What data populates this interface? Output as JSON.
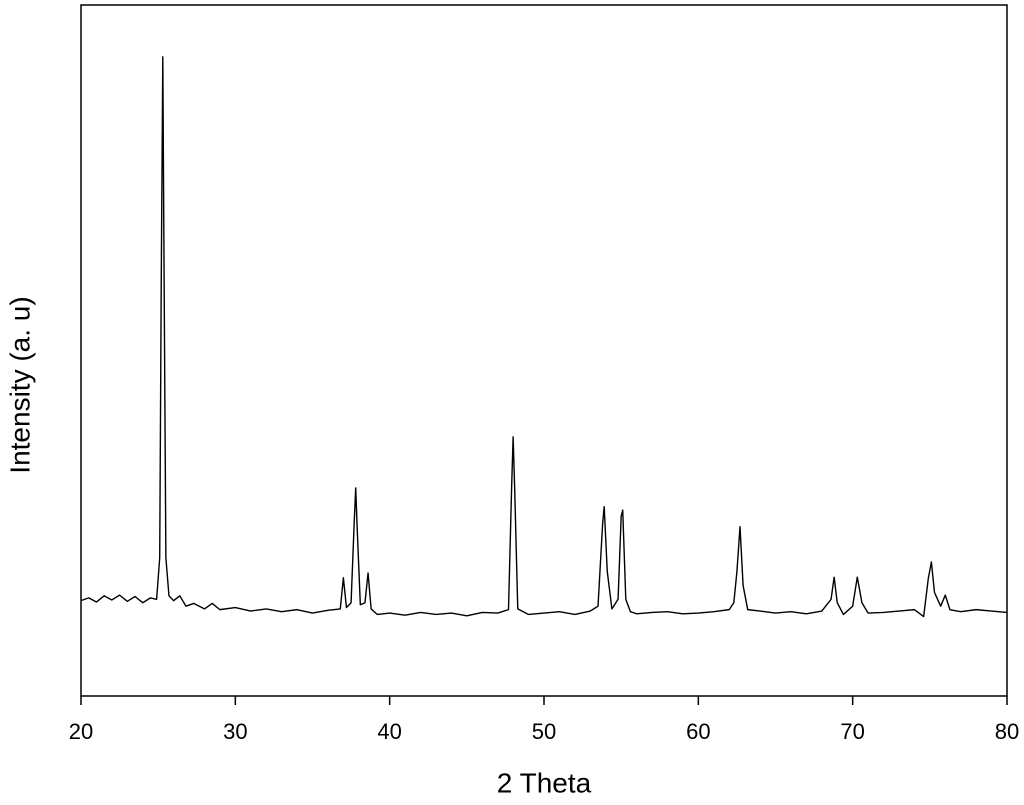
{
  "chart_data": {
    "type": "line",
    "x_label": "2 Theta",
    "y_label": "Intensity (a. u)",
    "xlim": [
      20,
      80
    ],
    "xticks": [
      20,
      30,
      40,
      50,
      60,
      70,
      80
    ],
    "ylim": [
      0,
      100
    ],
    "color": "#000000",
    "x": [
      20,
      20.5,
      21,
      21.5,
      22,
      22.5,
      23,
      23.5,
      24,
      24.5,
      24.9,
      25.1,
      25.2,
      25.3,
      25.4,
      25.5,
      25.7,
      26,
      26.4,
      26.8,
      27.3,
      28,
      28.5,
      29,
      30,
      31,
      32,
      33,
      34,
      35,
      36,
      36.8,
      37.0,
      37.2,
      37.5,
      37.7,
      37.8,
      37.9,
      38.1,
      38.4,
      38.6,
      38.8,
      39.2,
      40,
      41,
      42,
      43,
      44,
      45,
      46,
      47,
      47.7,
      47.9,
      48.0,
      48.1,
      48.3,
      49,
      50,
      51,
      52,
      53,
      53.5,
      53.8,
      53.9,
      54.1,
      54.4,
      54.8,
      55.0,
      55.1,
      55.3,
      55.6,
      56,
      57,
      58,
      59,
      60,
      61,
      62,
      62.3,
      62.5,
      62.7,
      62.9,
      63.2,
      64,
      65,
      66,
      67,
      68,
      68.6,
      68.8,
      69.0,
      69.4,
      70.0,
      70.3,
      70.6,
      71,
      72,
      73,
      74,
      74.6,
      74.9,
      75.1,
      75.3,
      75.7,
      76.0,
      76.3,
      77,
      78,
      79,
      80
    ],
    "values": [
      13.8,
      14.2,
      13.6,
      14.5,
      13.9,
      14.6,
      13.7,
      14.4,
      13.5,
      14.2,
      14.0,
      20,
      60,
      92.5,
      55,
      20,
      14.5,
      13.8,
      14.5,
      13.0,
      13.4,
      12.6,
      13.4,
      12.5,
      12.8,
      12.3,
      12.6,
      12.2,
      12.5,
      12.0,
      12.4,
      12.6,
      17.1,
      12.8,
      13.5,
      25,
      30.1,
      24,
      13.2,
      13.5,
      17.8,
      12.6,
      11.8,
      12.0,
      11.7,
      12.1,
      11.8,
      12.0,
      11.6,
      12.1,
      12.0,
      12.5,
      30,
      37.5,
      30,
      12.6,
      11.8,
      12.0,
      12.2,
      11.8,
      12.3,
      13,
      25,
      27.4,
      18,
      12.6,
      14,
      26,
      26.9,
      14,
      12.2,
      11.9,
      12.1,
      12.2,
      11.9,
      12.0,
      12.2,
      12.5,
      13.5,
      18,
      24.5,
      16,
      12.5,
      12.3,
      12.0,
      12.2,
      11.9,
      12.3,
      14,
      17.2,
      13.5,
      11.8,
      13,
      17.2,
      13.5,
      12.0,
      12.1,
      12.3,
      12.5,
      11.5,
      17,
      19.4,
      15,
      13,
      14.6,
      12.5,
      12.2,
      12.5,
      12.3,
      12.1
    ]
  }
}
